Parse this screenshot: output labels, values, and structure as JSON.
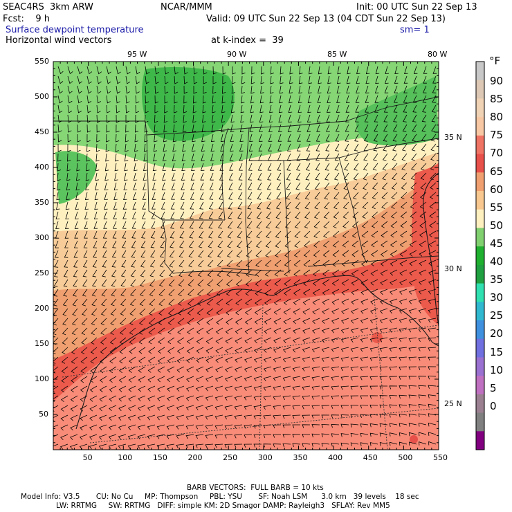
{
  "header": {
    "model": "SEAC4RS  3km ARW",
    "org": "NCAR/MMM",
    "init": "Init: 00 UTC Sun 22 Sep 13",
    "fcst": "Fcst:    9 h",
    "valid": "Valid: 09 UTC Sun 22 Sep 13 (04 CDT Sun 22 Sep 13)",
    "field1": "Surface dewpoint temperature",
    "smooth": "sm= 1",
    "field2": "Horizontal wind vectors",
    "klevel": "at k-index =  39"
  },
  "axes": {
    "x_ticks": [
      "50",
      "100",
      "150",
      "200",
      "250",
      "300",
      "350",
      "400",
      "450",
      "500",
      "550"
    ],
    "y_ticks": [
      "50",
      "100",
      "150",
      "200",
      "250",
      "300",
      "350",
      "400",
      "450",
      "500",
      "550"
    ],
    "lon_labels": [
      "95 W",
      "90 W",
      "85 W",
      "80 W"
    ],
    "lat_labels": [
      "35 N",
      "30 N",
      "25 N"
    ]
  },
  "legend": {
    "unit": "°F",
    "levels": [
      "90",
      "85",
      "80",
      "75",
      "70",
      "65",
      "60",
      "55",
      "50",
      "45",
      "40",
      "35",
      "30",
      "25",
      "20",
      "15",
      "10",
      "5",
      "0"
    ],
    "colors": [
      "#c8c8c8",
      "#dcc8b4",
      "#f0d2b4",
      "#f8c8a4",
      "#f07464",
      "#e8504a",
      "#f0a070",
      "#f8c890",
      "#fff0c0",
      "#80d070",
      "#20b030",
      "#20a040",
      "#30e0b0",
      "#30b8d0",
      "#4090e0",
      "#7070e0",
      "#9a70d0",
      "#c070c0",
      "#9a8090",
      "#808080",
      "#800080"
    ]
  },
  "footer": {
    "barb": "BARB VECTORS:  FULL BARB = 10 kts",
    "line1": "Model Info: V3.5       CU: No Cu     MP: Thompson     PBL: YSU       SF: Noah LSM      3.0 km   39 levels    18 sec",
    "line2": "LW: RRTMG     SW: RRTMG   DIFF: simple KM: 2D Smagor DAMP: Rayleigh3   SFLAY: Rev MM5"
  },
  "map_data": {
    "extent_x": [
      0,
      550
    ],
    "extent_y": [
      0,
      550
    ],
    "projection": "lambert",
    "barb_reference_kts": 10
  }
}
